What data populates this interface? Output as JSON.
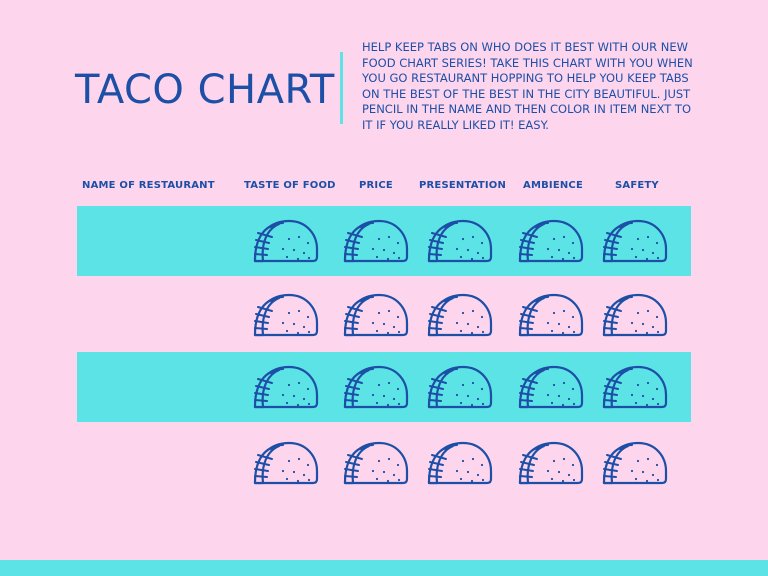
{
  "title": "TACO CHART",
  "intro": "HELP KEEP TABS ON WHO DOES IT BEST WITH OUR NEW FOOD CHART SERIES! TAKE THIS CHART WITH YOU WHEN YOU GO RESTAURANT HOPPING TO HELP YOU KEEP TABS ON THE BEST OF THE BEST IN THE CITY BEAUTIFUL. JUST PENCIL IN THE NAME AND THEN COLOR IN ITEM NEXT TO IT IF YOU REALLY LIKED IT! EASY.",
  "columns": {
    "name": "NAME OF RESTAURANT",
    "taste": "TASTE OF FOOD",
    "price": "PRICE",
    "presentation": "PRESENTATION",
    "ambience": "AMBIENCE",
    "safety": "SAFETY"
  },
  "rows": [
    {
      "restaurant": "",
      "filled": true
    },
    {
      "restaurant": "",
      "filled": false
    },
    {
      "restaurant": "",
      "filled": true
    },
    {
      "restaurant": "",
      "filled": false
    }
  ],
  "colors": {
    "background": "#fdd6ee",
    "accent": "#5ce3e6",
    "ink": "#1d4fa6"
  },
  "icons": {
    "taco": "taco-icon"
  }
}
